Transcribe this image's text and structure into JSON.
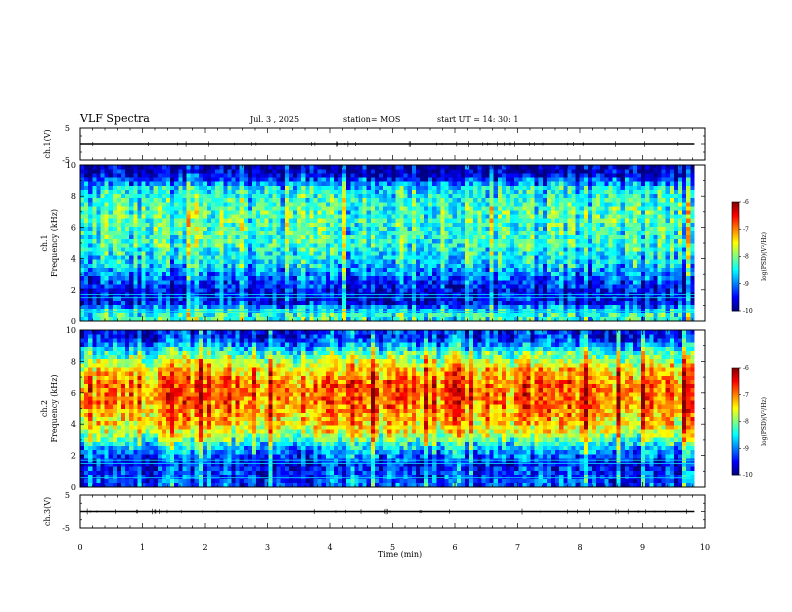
{
  "header": {
    "title": "VLF Spectra",
    "date": "Jul. 3 , 2025",
    "station": "station= MOS",
    "start": "start UT = 14: 30: 1"
  },
  "chart_data": [
    {
      "type": "line",
      "panel": "ch1-waveform",
      "ylabel": "ch.1(V)",
      "ylim": [
        -5,
        5
      ],
      "yticks": [
        "5",
        "-5"
      ],
      "xlim": [
        0,
        10
      ],
      "series": [
        {
          "x": [
            0,
            9.83
          ],
          "values": [
            0,
            0
          ]
        }
      ]
    },
    {
      "type": "heatmap",
      "panel": "ch1-spectrogram",
      "ylabel": "ch.1 Frequency (kHz)",
      "ylim": [
        0,
        10
      ],
      "yticks": [
        "0",
        "2",
        "4",
        "6",
        "8",
        "10"
      ],
      "xlim": [
        0,
        10
      ],
      "x_extent": [
        0,
        9.83
      ],
      "colorbar": {
        "label": "log(PSD)(V²/Hz)",
        "ticks": [
          "-6",
          "-7",
          "-8",
          "-9",
          "-10"
        ],
        "range": [
          -10,
          -6
        ]
      },
      "profile": [
        {
          "f": 0.5,
          "v": -8.4
        },
        {
          "f": 1.2,
          "v": -9.6
        },
        {
          "f": 1.8,
          "v": -9.7
        },
        {
          "f": 2.5,
          "v": -9.4
        },
        {
          "f": 3.5,
          "v": -8.8
        },
        {
          "f": 5,
          "v": -8.4
        },
        {
          "f": 7,
          "v": -8.3
        },
        {
          "f": 8.5,
          "v": -8.6
        },
        {
          "f": 9.5,
          "v": -9.9
        }
      ]
    },
    {
      "type": "heatmap",
      "panel": "ch2-spectrogram",
      "ylabel": "ch.2 Frequency (kHz)",
      "ylim": [
        0,
        10
      ],
      "yticks": [
        "0",
        "2",
        "4",
        "6",
        "8",
        "10"
      ],
      "xlim": [
        0,
        10
      ],
      "x_extent": [
        0,
        9.83
      ],
      "colorbar": {
        "label": "log(PSD)(V²/Hz)",
        "ticks": [
          "-6",
          "-7",
          "-8",
          "-9",
          "-10"
        ],
        "range": [
          -10,
          -6
        ]
      },
      "profile": [
        {
          "f": 0.5,
          "v": -9.2
        },
        {
          "f": 1.5,
          "v": -9.5
        },
        {
          "f": 2.5,
          "v": -8.7
        },
        {
          "f": 3.5,
          "v": -7.6
        },
        {
          "f": 4.5,
          "v": -7.2
        },
        {
          "f": 5.5,
          "v": -6.9
        },
        {
          "f": 6.5,
          "v": -6.9
        },
        {
          "f": 7.5,
          "v": -7.3
        },
        {
          "f": 8.5,
          "v": -8.2
        },
        {
          "f": 9.5,
          "v": -9.4
        }
      ]
    },
    {
      "type": "line",
      "panel": "ch3-waveform",
      "ylabel": "ch.3(V)",
      "ylim": [
        -5,
        5
      ],
      "yticks": [
        "5",
        "-5"
      ],
      "xlim": [
        0,
        10
      ],
      "xlabel": "Time (min)",
      "xticks": [
        "0",
        "1",
        "2",
        "3",
        "4",
        "5",
        "6",
        "7",
        "8",
        "9",
        "10"
      ],
      "series": [
        {
          "x": [
            0,
            9.83
          ],
          "values": [
            0,
            0
          ]
        }
      ]
    }
  ],
  "colors": {
    "low": "#000080",
    "mid": "#00ff00",
    "high": "#ff0000"
  }
}
